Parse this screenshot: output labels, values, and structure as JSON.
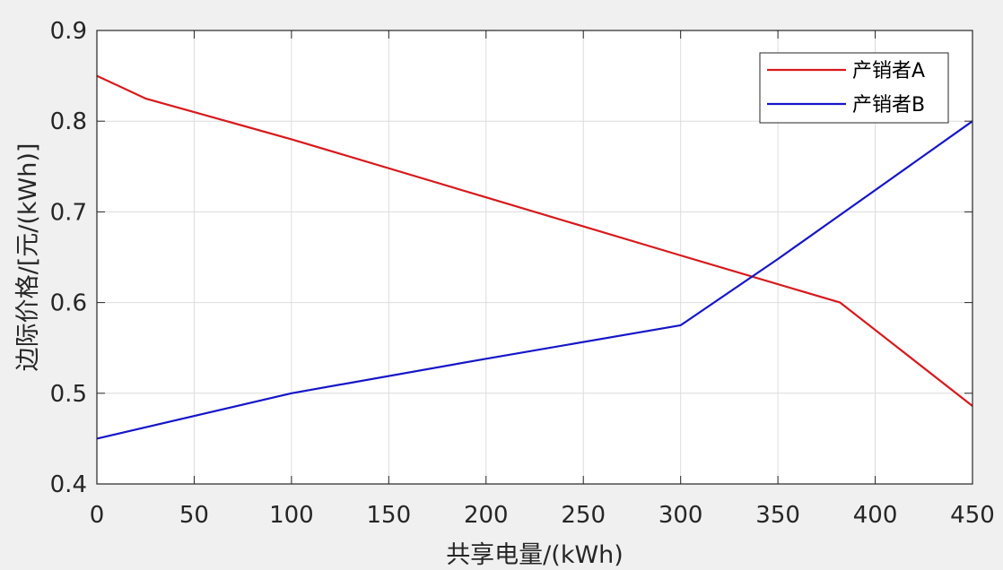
{
  "chart_data": {
    "type": "line",
    "title": "",
    "xlabel": "共享电量/(kWh)",
    "ylabel": "边际价格/[元/(kWh)]",
    "xlim": [
      0,
      450
    ],
    "ylim": [
      0.4,
      0.9
    ],
    "xticks": [
      0,
      50,
      100,
      150,
      200,
      250,
      300,
      350,
      400,
      450
    ],
    "yticks": [
      0.4,
      0.5,
      0.6,
      0.7,
      0.8,
      0.9
    ],
    "x_tick_labels": [
      "0",
      "50",
      "100",
      "150",
      "200",
      "250",
      "300",
      "350",
      "400",
      "450"
    ],
    "y_tick_labels": [
      "0.4",
      "0.5",
      "0.6",
      "0.7",
      "0.8",
      "0.9"
    ],
    "grid": true,
    "legend_position": "top-right",
    "series": [
      {
        "name": "产销者A",
        "color": "#d7191c",
        "x": [
          0,
          25,
          100,
          200,
          300,
          382,
          450
        ],
        "y": [
          0.85,
          0.825,
          0.78,
          0.716,
          0.652,
          0.6,
          0.486
        ]
      },
      {
        "name": "产销者B",
        "color": "#1515c8",
        "x": [
          0,
          100,
          200,
          300,
          350,
          400,
          450
        ],
        "y": [
          0.45,
          0.5,
          0.538,
          0.575,
          0.648,
          0.724,
          0.8
        ]
      }
    ]
  }
}
